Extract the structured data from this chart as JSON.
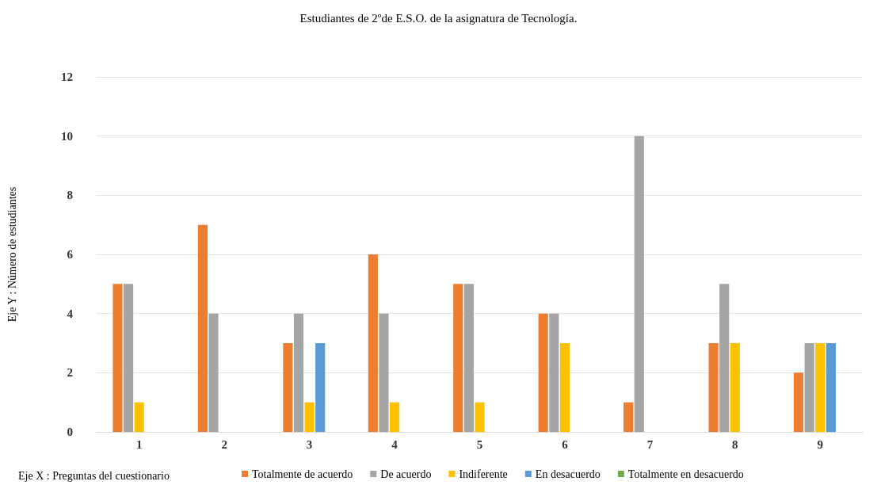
{
  "chart_data": {
    "type": "bar",
    "title": "Estudiantes de 2ºde E.S.O. de la asignatura de Tecnología.",
    "xlabel": "Eje X : Preguntas del cuestionario",
    "ylabel": "Eje Y : Número de estudiantes",
    "categories": [
      "1",
      "2",
      "3",
      "4",
      "5",
      "6",
      "7",
      "8",
      "9"
    ],
    "series": [
      {
        "name": "Totalmente de acuerdo",
        "color": "#ed7d31",
        "values": [
          5,
          7,
          3,
          6,
          5,
          4,
          1,
          3,
          2
        ]
      },
      {
        "name": "De acuerdo",
        "color": "#a5a5a5",
        "values": [
          5,
          4,
          4,
          4,
          5,
          4,
          10,
          5,
          3
        ]
      },
      {
        "name": "Indiferente",
        "color": "#ffc000",
        "values": [
          1,
          0,
          1,
          1,
          1,
          3,
          0,
          3,
          3
        ]
      },
      {
        "name": "En desacuerdo",
        "color": "#5b9bd5",
        "values": [
          0,
          0,
          3,
          0,
          0,
          0,
          0,
          0,
          3
        ]
      },
      {
        "name": "Totalmente en desacuerdo",
        "color": "#70ad47",
        "values": [
          0,
          0,
          0,
          0,
          0,
          0,
          0,
          0,
          0
        ]
      }
    ],
    "ylim": [
      0,
      12
    ],
    "yticks": [
      0,
      2,
      4,
      6,
      8,
      10,
      12
    ],
    "grid": "y",
    "legend": "bottom"
  }
}
